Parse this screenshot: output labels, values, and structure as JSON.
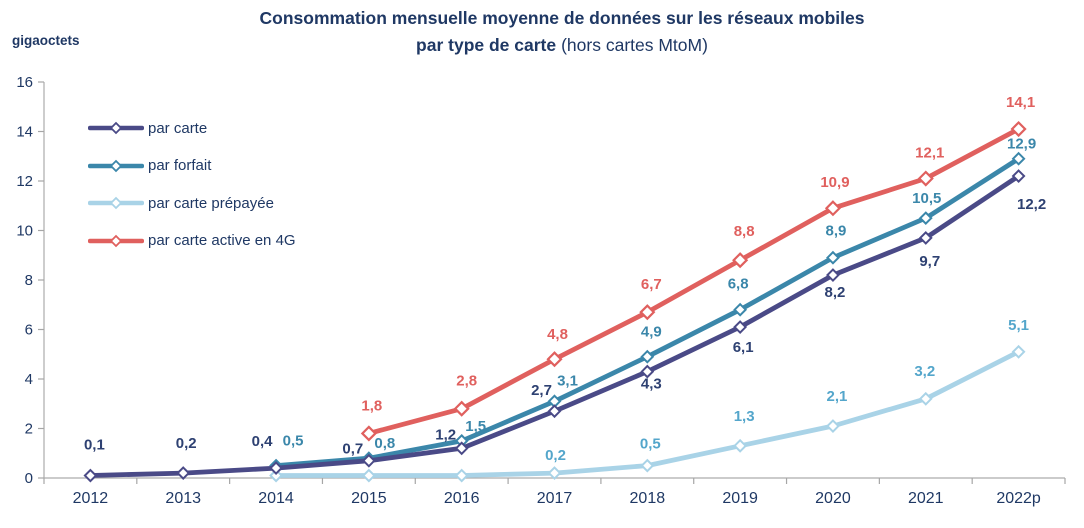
{
  "title": {
    "line1": "Consommation mensuelle moyenne de données sur les réseaux mobiles",
    "line2_bold": "par type de carte",
    "line2_note": "(hors cartes MtoM)"
  },
  "colors": {
    "title_text": "#1F3864",
    "axis_text": "#1F3864",
    "axis_line": "#ACACAC",
    "tick_line": "#A6A6A6"
  },
  "chart_data": {
    "type": "line",
    "title": "Consommation mensuelle moyenne de données sur les réseaux mobiles par type de carte (hors cartes MtoM)",
    "ylabel": "gigaoctets",
    "xlabel": "",
    "categories": [
      "2012",
      "2013",
      "2014",
      "2015",
      "2016",
      "2017",
      "2018",
      "2019",
      "2020",
      "2021",
      "2022p"
    ],
    "ylim": [
      0,
      16
    ],
    "y_ticks": [
      0,
      2,
      4,
      6,
      8,
      10,
      12,
      14,
      16
    ],
    "grid": false,
    "legend_position": "upper-left-inside",
    "marker": "open-diamond",
    "series": [
      {
        "name": "par carte",
        "color": "#4A4A87",
        "label_color": "#2E4172",
        "values": [
          0.1,
          0.2,
          0.4,
          0.7,
          1.2,
          2.7,
          4.3,
          6.1,
          8.2,
          9.7,
          12.2
        ],
        "labels": [
          "0,1",
          "0,2",
          "0,4",
          "0,7",
          "1,2",
          "2,7",
          "4,3",
          "6,1",
          "8,2",
          "9,7",
          "12,2"
        ]
      },
      {
        "name": "par forfait",
        "color": "#3B87AA",
        "label_color": "#3B87AA",
        "values": [
          null,
          null,
          0.5,
          0.8,
          1.5,
          3.1,
          4.9,
          6.8,
          8.9,
          10.5,
          12.9
        ],
        "labels": [
          null,
          null,
          "0,5",
          "0,8",
          "1,5",
          "3,1",
          "4,9",
          "6,8",
          "8,9",
          "10,5",
          "12,9"
        ]
      },
      {
        "name": "par carte prépayée",
        "color": "#A9D3E7",
        "label_color": "#54A6CB",
        "values": [
          null,
          null,
          0.1,
          0.1,
          0.1,
          0.2,
          0.5,
          1.3,
          2.1,
          3.2,
          5.1
        ],
        "labels": [
          null,
          null,
          null,
          null,
          null,
          "0,2",
          "0,5",
          "1,3",
          "2,1",
          "3,2",
          "5,1"
        ]
      },
      {
        "name": "par carte active en 4G",
        "color": "#E0605E",
        "label_color": "#E0605E",
        "values": [
          null,
          null,
          null,
          1.8,
          2.8,
          4.8,
          6.7,
          8.8,
          10.9,
          12.1,
          14.1
        ],
        "labels": [
          null,
          null,
          null,
          "1,8",
          "2,8",
          "4,8",
          "6,7",
          "8,8",
          "10,9",
          "12,1",
          "14,1"
        ]
      }
    ]
  }
}
